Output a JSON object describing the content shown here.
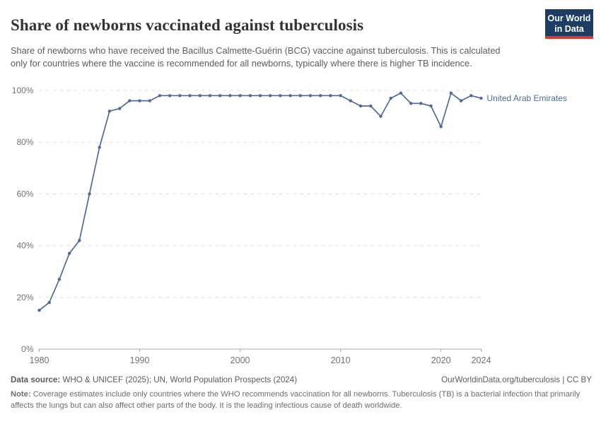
{
  "header": {
    "title": "Share of newborns vaccinated against tuberculosis",
    "subtitle": "Share of newborns who have received the Bacillus Calmette-Guérin (BCG) vaccine against tuberculosis. This is calculated only for countries where the vaccine is recommended for all newborns, typically where there is higher TB incidence.",
    "logo": {
      "line1": "Our World",
      "line2": "in Data",
      "bg_color": "#1d3d63",
      "stripe_color": "#d93a34"
    }
  },
  "chart_data": {
    "type": "line",
    "title": "Share of newborns vaccinated against tuberculosis",
    "xlabel": "",
    "ylabel": "",
    "xlim": [
      1980,
      2024
    ],
    "ylim": [
      0,
      100
    ],
    "grid": "horizontal-dashed",
    "legend_position": "end-of-line-label",
    "x_ticks": [
      {
        "value": 1980,
        "label": "1980"
      },
      {
        "value": 1990,
        "label": "1990"
      },
      {
        "value": 2000,
        "label": "2000"
      },
      {
        "value": 2010,
        "label": "2010"
      },
      {
        "value": 2020,
        "label": "2020"
      },
      {
        "value": 2024,
        "label": "2024"
      }
    ],
    "y_ticks": [
      {
        "value": 0,
        "label": "0%"
      },
      {
        "value": 20,
        "label": "20%"
      },
      {
        "value": 40,
        "label": "40%"
      },
      {
        "value": 60,
        "label": "60%"
      },
      {
        "value": 80,
        "label": "80%"
      },
      {
        "value": 100,
        "label": "100%"
      }
    ],
    "series": [
      {
        "name": "United Arab Emirates",
        "color": "#4c6a9c",
        "x": [
          1980,
          1981,
          1982,
          1983,
          1984,
          1985,
          1986,
          1987,
          1988,
          1989,
          1990,
          1991,
          1992,
          1993,
          1994,
          1995,
          1996,
          1997,
          1998,
          1999,
          2000,
          2001,
          2002,
          2003,
          2004,
          2005,
          2006,
          2007,
          2008,
          2009,
          2010,
          2011,
          2012,
          2013,
          2014,
          2015,
          2016,
          2017,
          2018,
          2019,
          2020,
          2021,
          2022,
          2023,
          2024
        ],
        "values": [
          15,
          18,
          27,
          37,
          42,
          60,
          78,
          92,
          93,
          96,
          96,
          96,
          98,
          98,
          98,
          98,
          98,
          98,
          98,
          98,
          98,
          98,
          98,
          98,
          98,
          98,
          98,
          98,
          98,
          98,
          98,
          96,
          94,
          94,
          90,
          97,
          99,
          95,
          95,
          94,
          86,
          99,
          96,
          98,
          97
        ]
      }
    ]
  },
  "footer": {
    "datasource_label": "Data source:",
    "datasource_text": " WHO & UNICEF (2025); UN, World Population Prospects (2024)",
    "link": "OurWorldinData.org/tuberculosis | CC BY",
    "note_label": "Note:",
    "note_text": " Coverage estimates include only countries where the WHO recommends vaccination for all newborns. Tuberculosis (TB) is a bacterial infection that primarily affects the lungs but can also affect other parts of the body. It is the leading infectious cause of death worldwide."
  }
}
